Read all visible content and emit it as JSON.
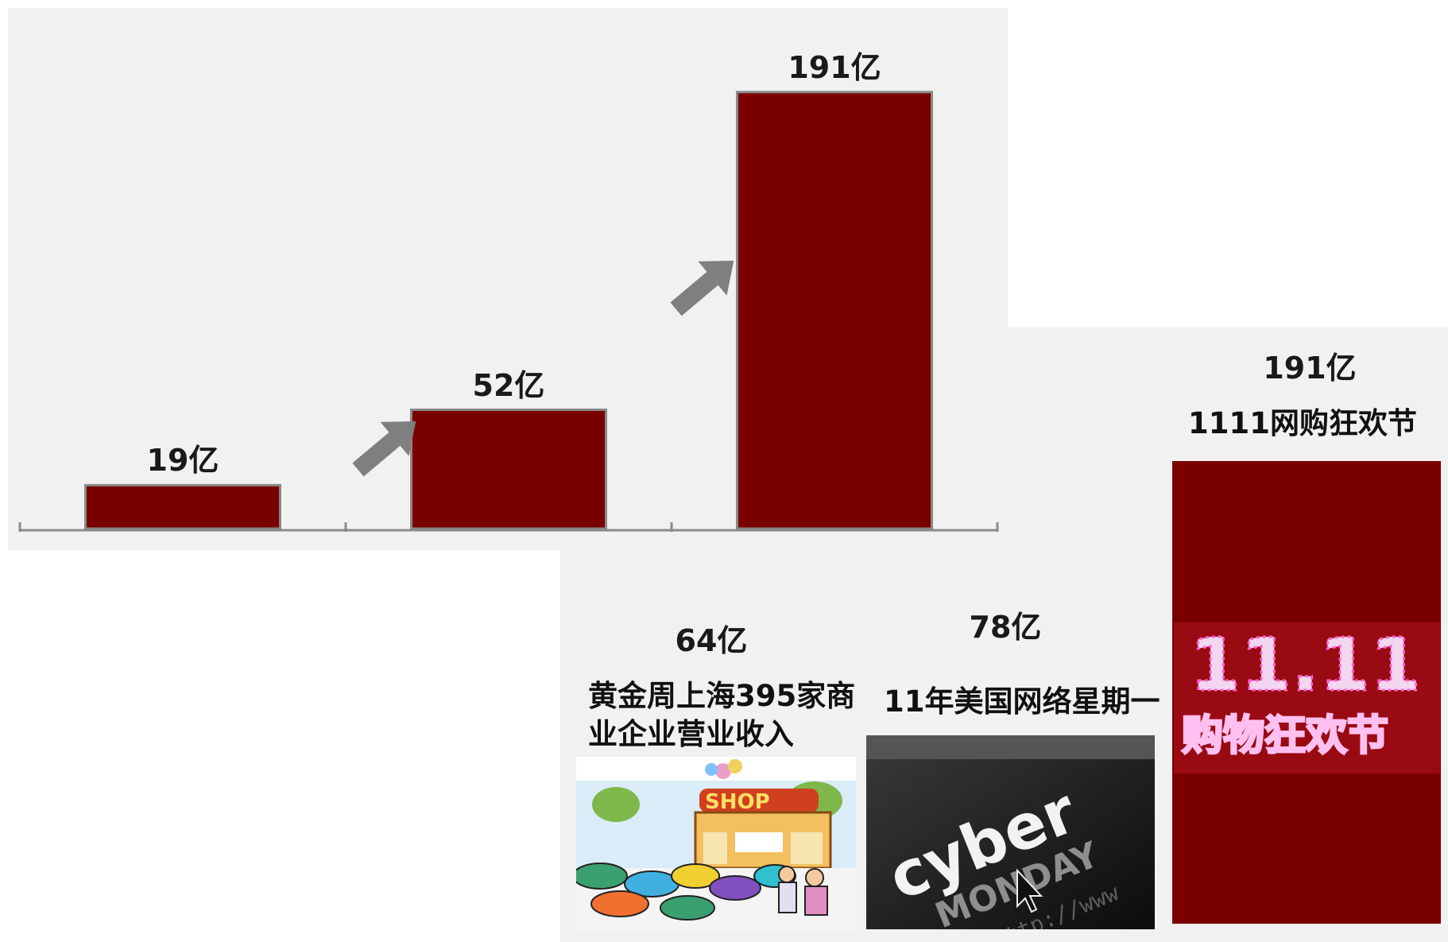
{
  "chart_data": [
    {
      "type": "bar",
      "categories": [
        "",
        "",
        ""
      ],
      "values": [
        19,
        52,
        191
      ],
      "data_labels": [
        "19亿",
        "52亿",
        "191亿"
      ],
      "title": "",
      "xlabel": "",
      "ylabel": "",
      "bar_color": "#7a0000",
      "background": "#f1f1f1",
      "arrows_between_bars": true
    },
    {
      "type": "bar",
      "categories": [
        "黄金周上海395家商业企业营业收入",
        "11年美国网络星期一",
        "1111网购狂欢节"
      ],
      "values": [
        64,
        78,
        191
      ],
      "data_labels": [
        "64亿",
        "78亿",
        "191亿"
      ],
      "title": "",
      "bar_color": "#7a0000",
      "background": "#f1f1f1"
    }
  ],
  "labels": {
    "top": [
      "19亿",
      "52亿",
      "191亿"
    ],
    "bottom_values": [
      "64亿",
      "78亿",
      "191亿"
    ],
    "bottom_captions": [
      "黄金周上海395家商\n业企业营业收入",
      "11年美国网络星期一",
      "1111网购狂欢节"
    ]
  },
  "images": {
    "shop_sign": "SHOP",
    "cyber_word1": "cyber",
    "cyber_word2": "MONDAY",
    "cyber_url": "http://www",
    "double11_digits": "11.11",
    "double11_text": "购物狂欢节"
  },
  "icons": [
    "up-right-arrow-icon",
    "shop-cartoon",
    "cursor-icon"
  ]
}
